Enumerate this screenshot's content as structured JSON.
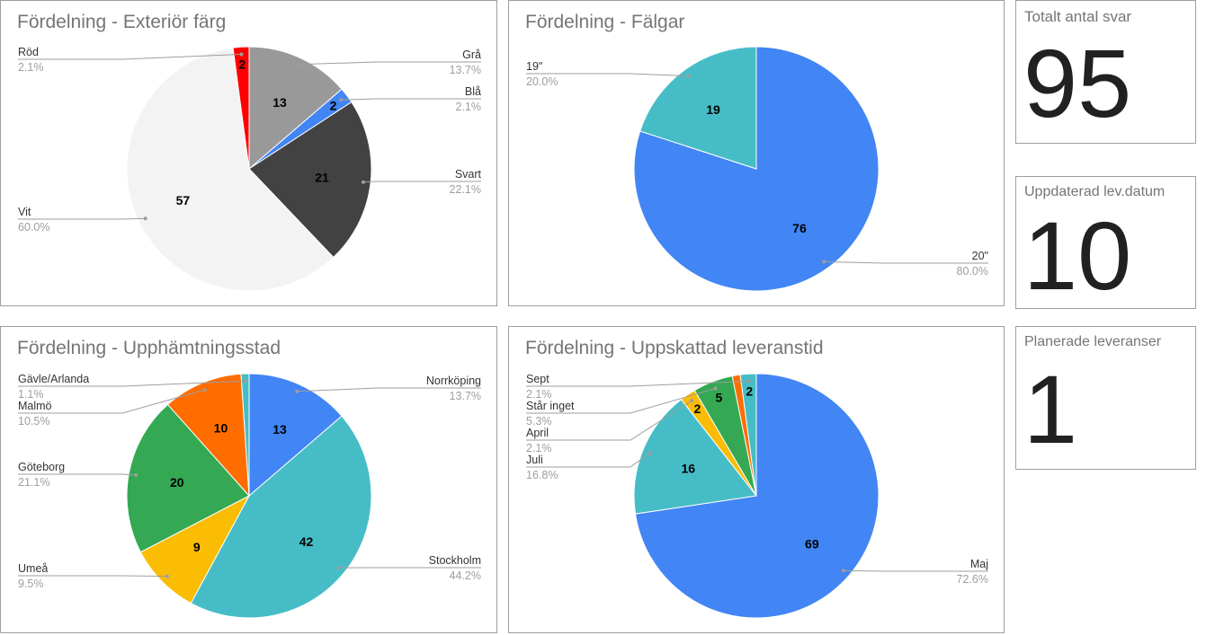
{
  "chart_data": [
    {
      "type": "pie",
      "title": "Fördelning - Exteriör färg",
      "total": 95,
      "slices": [
        {
          "label": "Grå",
          "value": 13,
          "percent": "13.7%",
          "color": "#999999"
        },
        {
          "label": "Blå",
          "value": 2,
          "percent": "2.1%",
          "color": "#4285f4"
        },
        {
          "label": "Svart",
          "value": 21,
          "percent": "22.1%",
          "color": "#424242"
        },
        {
          "label": "Vit",
          "value": 57,
          "percent": "60.0%",
          "color": "#f3f3f3"
        },
        {
          "label": "Röd",
          "value": 2,
          "percent": "2.1%",
          "color": "#ff0000"
        }
      ]
    },
    {
      "type": "pie",
      "title": "Fördelning - Fälgar",
      "total": 95,
      "slices": [
        {
          "label": "20\"",
          "value": 76,
          "percent": "80.0%",
          "color": "#4285f4"
        },
        {
          "label": "19\"",
          "value": 19,
          "percent": "20.0%",
          "color": "#46bdc6"
        }
      ]
    },
    {
      "type": "pie",
      "title": "Fördelning - Upphämtningsstad",
      "total": 95,
      "slices": [
        {
          "label": "Norrköping",
          "value": 13,
          "percent": "13.7%",
          "color": "#4285f4"
        },
        {
          "label": "Stockholm",
          "value": 42,
          "percent": "44.2%",
          "color": "#46bdc6"
        },
        {
          "label": "Umeå",
          "value": 9,
          "percent": "9.5%",
          "color": "#fbbc04"
        },
        {
          "label": "Göteborg",
          "value": 20,
          "percent": "21.1%",
          "color": "#34a853"
        },
        {
          "label": "Malmö",
          "value": 10,
          "percent": "10.5%",
          "color": "#ff6d01"
        },
        {
          "label": "Gävle/Arlanda",
          "value": 1,
          "percent": "1.1%",
          "color": "#46bdc6"
        }
      ]
    },
    {
      "type": "pie",
      "title": "Fördelning - Uppskattad leveranstid",
      "total": 95,
      "slices": [
        {
          "label": "Maj",
          "value": 69,
          "percent": "72.6%",
          "color": "#4285f4"
        },
        {
          "label": "Juli",
          "value": 16,
          "percent": "16.8%",
          "color": "#46bdc6"
        },
        {
          "label": "April",
          "value": 2,
          "percent": "2.1%",
          "color": "#fbbc04"
        },
        {
          "label": "Står inget",
          "value": 5,
          "percent": "5.3%",
          "color": "#34a853"
        },
        {
          "label": "",
          "value": 1,
          "percent": "",
          "color": "#ff6d01"
        },
        {
          "label": "Sept",
          "value": 2,
          "percent": "2.1%",
          "color": "#46bdc6"
        }
      ]
    }
  ],
  "scorecards": [
    {
      "label": "Totalt antal svar",
      "value": "95"
    },
    {
      "label": "Uppdaterad lev.datum",
      "value": "10"
    },
    {
      "label": "Planerade leveranser",
      "value": "1"
    }
  ]
}
